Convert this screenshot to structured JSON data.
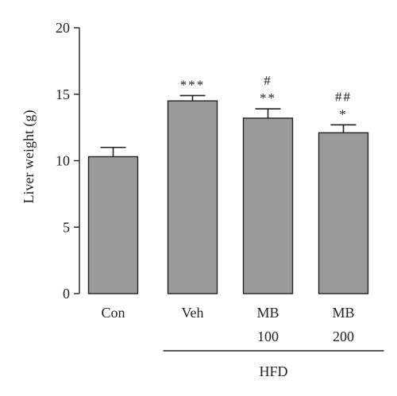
{
  "chart_data": {
    "type": "bar",
    "title": "",
    "ylabel": "Liver weight (g)",
    "xlabel": "",
    "ylim": [
      0,
      20
    ],
    "yticks": [
      "0",
      "5",
      "10",
      "15",
      "20"
    ],
    "categories": [
      {
        "line1": "Con",
        "line2": ""
      },
      {
        "line1": "Veh",
        "line2": ""
      },
      {
        "line1": "MB",
        "line2": "100"
      },
      {
        "line1": "MB",
        "line2": "200"
      }
    ],
    "values": [
      10.3,
      14.5,
      13.2,
      12.1
    ],
    "errors": [
      0.7,
      0.4,
      0.7,
      0.6
    ],
    "significance": [
      {
        "upper": "",
        "lower": ""
      },
      {
        "upper": "",
        "lower": "***"
      },
      {
        "upper": "#",
        "lower": "**"
      },
      {
        "upper": "##",
        "lower": "*"
      }
    ],
    "group_label": "HFD",
    "group_span": [
      1,
      3
    ],
    "bar_color": "#9a9a9a",
    "grid": false
  }
}
